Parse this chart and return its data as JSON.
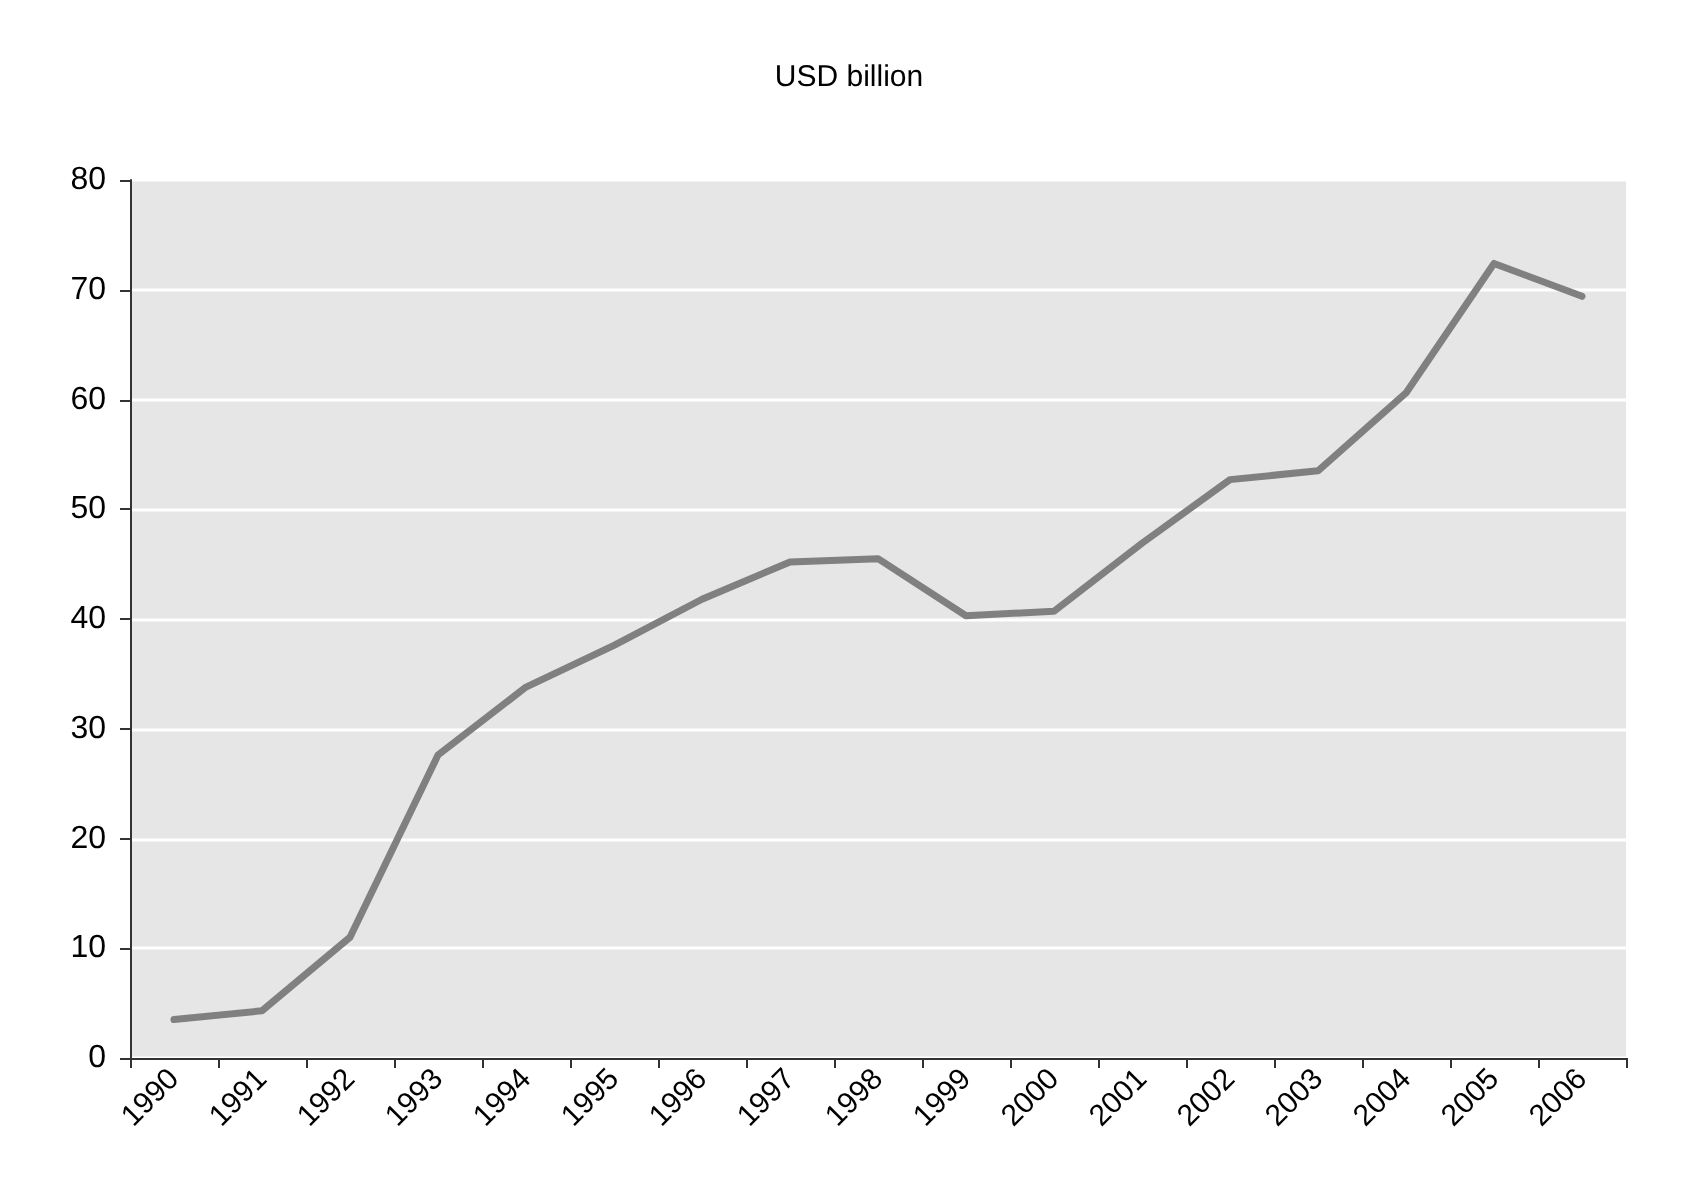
{
  "chart_data": {
    "type": "line",
    "title": "USD billion",
    "categories": [
      "1990",
      "1991",
      "1992",
      "1993",
      "1994",
      "1995",
      "1996",
      "1997",
      "1998",
      "1999",
      "2000",
      "2001",
      "2002",
      "2003",
      "2004",
      "2005",
      "2006"
    ],
    "series": [
      {
        "color": "#808080",
        "values": [
          3.5,
          4.3,
          11,
          27.6,
          33.8,
          37.6,
          41.8,
          45.2,
          45.5,
          40.3,
          40.7,
          46.9,
          52.7,
          53.5,
          60.6,
          72.4,
          69.4
        ]
      }
    ],
    "ylim": [
      0,
      80
    ],
    "yticks": [
      0,
      10,
      20,
      30,
      40,
      50,
      60,
      70,
      80
    ],
    "grid": "y",
    "marker": "none",
    "line_style": "solid"
  }
}
